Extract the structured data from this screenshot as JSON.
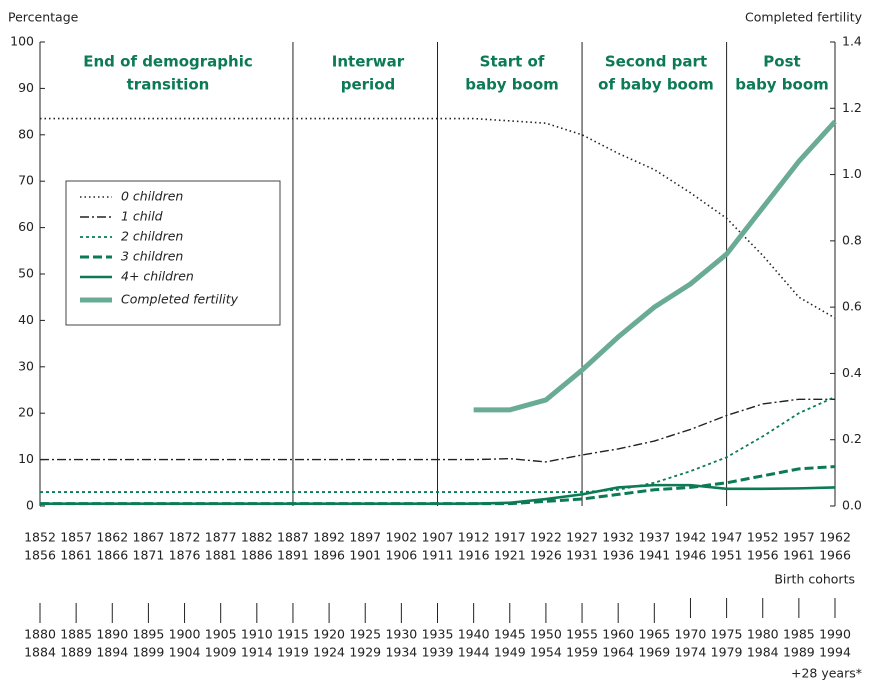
{
  "chart_data": {
    "type": "line",
    "y_label": "Percentage",
    "y2_label": "Completed fertility",
    "x_label": "Birth cohorts",
    "x2_note": "+28 years*",
    "categories": [
      [
        "1852",
        "1856"
      ],
      [
        "1857",
        "1861"
      ],
      [
        "1862",
        "1866"
      ],
      [
        "1867",
        "1871"
      ],
      [
        "1872",
        "1876"
      ],
      [
        "1877",
        "1881"
      ],
      [
        "1882",
        "1886"
      ],
      [
        "1887",
        "1891"
      ],
      [
        "1892",
        "1896"
      ],
      [
        "1897",
        "1901"
      ],
      [
        "1902",
        "1906"
      ],
      [
        "1907",
        "1911"
      ],
      [
        "1912",
        "1916"
      ],
      [
        "1917",
        "1921"
      ],
      [
        "1922",
        "1926"
      ],
      [
        "1927",
        "1931"
      ],
      [
        "1932",
        "1936"
      ],
      [
        "1937",
        "1941"
      ],
      [
        "1942",
        "1946"
      ],
      [
        "1947",
        "1951"
      ],
      [
        "1952",
        "1956"
      ],
      [
        "1957",
        "1961"
      ],
      [
        "1962",
        "1966"
      ]
    ],
    "categories_plus_28": [
      [
        "1880",
        "1884"
      ],
      [
        "1885",
        "1889"
      ],
      [
        "1890",
        "1894"
      ],
      [
        "1895",
        "1899"
      ],
      [
        "1900",
        "1904"
      ],
      [
        "1905",
        "1909"
      ],
      [
        "1910",
        "1914"
      ],
      [
        "1915",
        "1919"
      ],
      [
        "1920",
        "1924"
      ],
      [
        "1925",
        "1929"
      ],
      [
        "1930",
        "1934"
      ],
      [
        "1935",
        "1939"
      ],
      [
        "1940",
        "1944"
      ],
      [
        "1945",
        "1949"
      ],
      [
        "1950",
        "1954"
      ],
      [
        "1955",
        "1959"
      ],
      [
        "1960",
        "1964"
      ],
      [
        "1965",
        "1969"
      ],
      [
        "1970",
        "1974"
      ],
      [
        "1975",
        "1979"
      ],
      [
        "1980",
        "1984"
      ],
      [
        "1985",
        "1989"
      ],
      [
        "1990",
        "1994"
      ]
    ],
    "periods": [
      [
        "End of demographic",
        "transition"
      ],
      [
        "Interwar",
        "period"
      ],
      [
        "Start of",
        "baby boom"
      ],
      [
        "Second part",
        "of baby boom"
      ],
      [
        "Post",
        "baby boom"
      ]
    ],
    "series": [
      {
        "name": "0 children",
        "color": "#222222",
        "values": [
          83.5,
          83.5,
          83.5,
          83.5,
          83.5,
          83.5,
          83.5,
          83.5,
          83.5,
          83.5,
          83.5,
          83.5,
          83.5,
          83,
          82.5,
          80,
          76,
          72.5,
          67.5,
          62,
          54,
          45,
          40.5
        ]
      },
      {
        "name": "1 child",
        "color": "#222222",
        "values": [
          10,
          10,
          10,
          10,
          10,
          10,
          10,
          10,
          10,
          10,
          10,
          10,
          10,
          10.2,
          9.5,
          11,
          12.3,
          14,
          16.5,
          19.5,
          22,
          23,
          23
        ]
      },
      {
        "name": "2 children",
        "color": "#0b7a55",
        "values": [
          3,
          3,
          3,
          3,
          3,
          3,
          3,
          3,
          3,
          3,
          3,
          3,
          3,
          3,
          3,
          3,
          3.5,
          5,
          7.5,
          10.5,
          15,
          20,
          23.5
        ]
      },
      {
        "name": "3 children",
        "color": "#0b7a55",
        "values": [
          0.5,
          0.5,
          0.5,
          0.5,
          0.5,
          0.5,
          0.5,
          0.5,
          0.5,
          0.5,
          0.5,
          0.5,
          0.5,
          0.5,
          1,
          1.5,
          2.5,
          3.5,
          4,
          5,
          6.5,
          8,
          8.5
        ]
      },
      {
        "name": "4+ children",
        "color": "#0b7a55",
        "values": [
          0.5,
          0.5,
          0.5,
          0.5,
          0.5,
          0.5,
          0.5,
          0.5,
          0.5,
          0.5,
          0.5,
          0.5,
          0.5,
          0.7,
          1.5,
          2.5,
          4,
          4.5,
          4.5,
          3.7,
          3.7,
          3.8,
          4
        ]
      },
      {
        "name": "Completed fertility",
        "color": "#6aab95",
        "axis": "y2",
        "values": [
          null,
          null,
          null,
          null,
          null,
          null,
          null,
          null,
          null,
          null,
          null,
          null,
          0.29,
          0.29,
          0.32,
          0.41,
          0.51,
          0.6,
          0.67,
          0.76,
          0.9,
          1.04,
          1.16
        ]
      }
    ],
    "ylim": [
      0,
      100
    ],
    "yticks": [
      0,
      10,
      20,
      30,
      40,
      50,
      60,
      70,
      80,
      90,
      100
    ],
    "y2lim": [
      0,
      1.4
    ],
    "y2ticks": [
      {
        "value": 0,
        "label": "0.0"
      },
      0.2,
      0.4,
      0.6,
      0.8,
      {
        "value": 1,
        "label": "1.0"
      },
      1.2,
      1.4
    ]
  }
}
